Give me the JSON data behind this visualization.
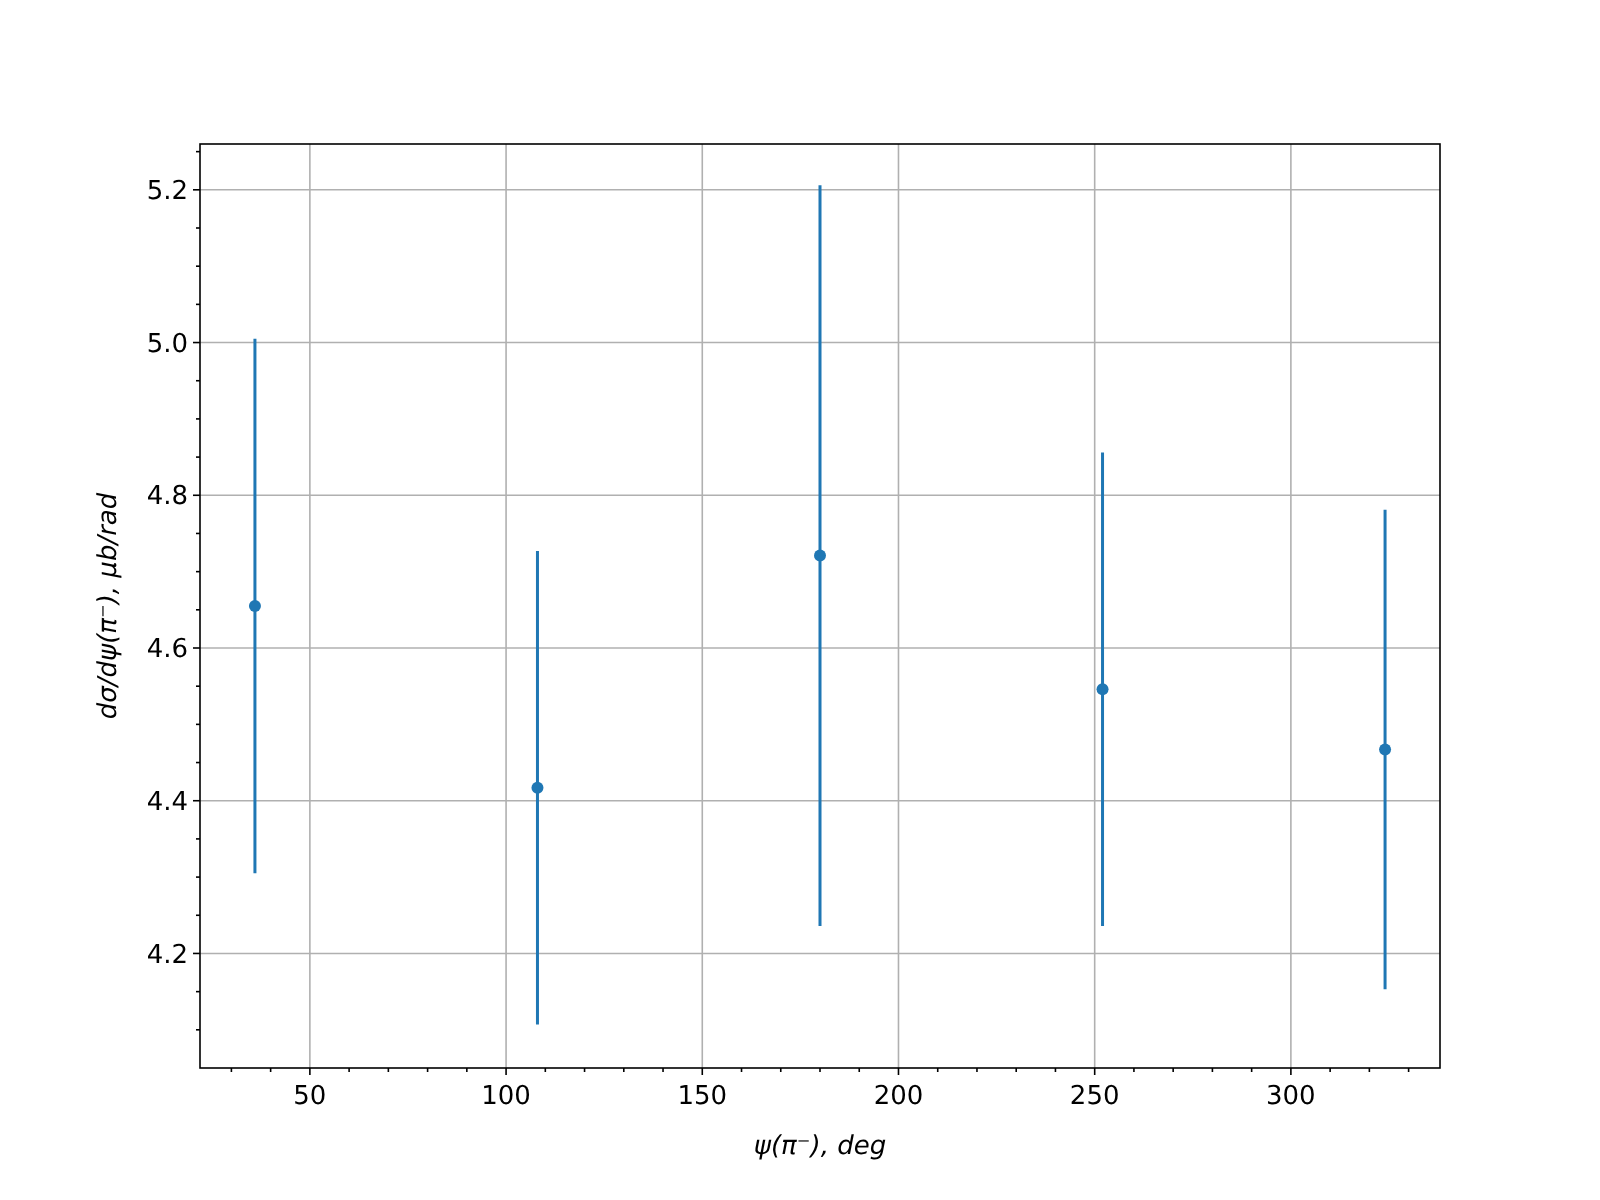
{
  "chart_data": {
    "type": "scatter",
    "xlabel": "ψ(π⁻), deg",
    "ylabel": "dσ/dψ(π⁻), μb/rad",
    "x": [
      36,
      108,
      180,
      252,
      324
    ],
    "series": [
      {
        "color": "#1f77b4",
        "values": [
          4.655,
          4.417,
          4.721,
          4.546,
          4.467
        ],
        "errors": [
          0.35,
          0.31,
          0.485,
          0.31,
          0.314
        ]
      }
    ],
    "xlim": [
      22,
      338
    ],
    "ylim": [
      4.05,
      5.26
    ],
    "xticks": [
      {
        "value": 30,
        "label": null
      },
      {
        "value": 40,
        "label": null
      },
      50,
      {
        "value": 60,
        "label": null
      },
      {
        "value": 70,
        "label": null
      },
      {
        "value": 80,
        "label": null
      },
      {
        "value": 90,
        "label": null
      },
      100,
      {
        "value": 110,
        "label": null
      },
      {
        "value": 120,
        "label": null
      },
      {
        "value": 130,
        "label": null
      },
      {
        "value": 140,
        "label": null
      },
      150,
      {
        "value": 160,
        "label": null
      },
      {
        "value": 170,
        "label": null
      },
      {
        "value": 180,
        "label": null
      },
      {
        "value": 190,
        "label": null
      },
      200,
      {
        "value": 210,
        "label": null
      },
      {
        "value": 220,
        "label": null
      },
      {
        "value": 230,
        "label": null
      },
      {
        "value": 240,
        "label": null
      },
      250,
      {
        "value": 260,
        "label": null
      },
      {
        "value": 270,
        "label": null
      },
      {
        "value": 280,
        "label": null
      },
      {
        "value": 290,
        "label": null
      },
      300,
      {
        "value": 310,
        "label": null
      },
      {
        "value": 320,
        "label": null
      },
      {
        "value": 330,
        "label": null
      }
    ],
    "yticks": [
      {
        "value": 4.1,
        "label": null
      },
      {
        "value": 4.15,
        "label": null
      },
      {
        "value": 4.2,
        "label": "4.2"
      },
      {
        "value": 4.25,
        "label": null
      },
      {
        "value": 4.3,
        "label": null
      },
      {
        "value": 4.35,
        "label": null
      },
      {
        "value": 4.4,
        "label": "4.4"
      },
      {
        "value": 4.45,
        "label": null
      },
      {
        "value": 4.5,
        "label": null
      },
      {
        "value": 4.55,
        "label": null
      },
      {
        "value": 4.6,
        "label": "4.6"
      },
      {
        "value": 4.65,
        "label": null
      },
      {
        "value": 4.7,
        "label": null
      },
      {
        "value": 4.75,
        "label": null
      },
      {
        "value": 4.8,
        "label": "4.8"
      },
      {
        "value": 4.85,
        "label": null
      },
      {
        "value": 4.9,
        "label": null
      },
      {
        "value": 4.95,
        "label": null
      },
      {
        "value": 5,
        "label": "5.0"
      },
      {
        "value": 5.05,
        "label": null
      },
      {
        "value": 5.1,
        "label": null
      },
      {
        "value": 5.15,
        "label": null
      },
      {
        "value": 5.2,
        "label": "5.2"
      },
      {
        "value": 5.25,
        "label": null
      }
    ],
    "grid": true,
    "marker": "circle"
  }
}
